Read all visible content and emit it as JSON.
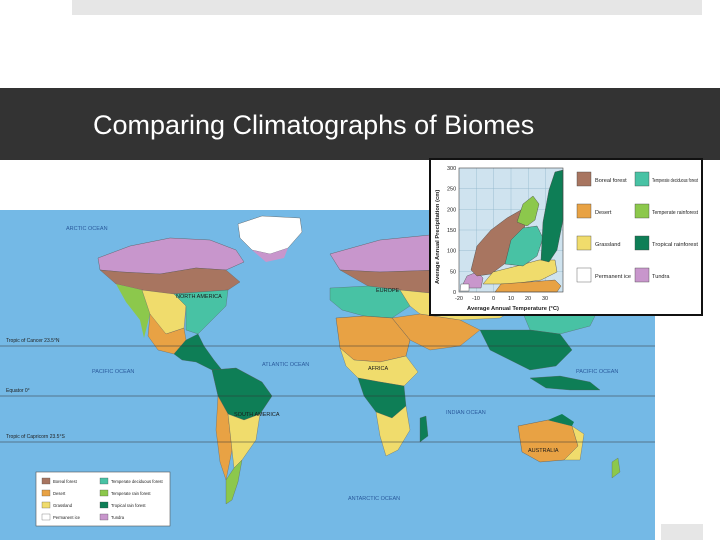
{
  "slide": {
    "title": "Comparing Climatographs of Biomes"
  },
  "colors": {
    "title_bar": "#333333",
    "ocean": "#74b9e6",
    "boreal_forest": "#a87560",
    "desert": "#e8a244",
    "grassland": "#f0dc6c",
    "permanent_ice": "#ffffff",
    "temperate_deciduous_forest": "#48c2a4",
    "temperate_rainforest": "#8cc84c",
    "tropical_rainforest": "#0e7e56",
    "tundra": "#c896cc"
  },
  "map": {
    "oceans": {
      "arctic": "ARCTIC OCEAN",
      "pacific_west": "PACIFIC OCEAN",
      "pacific_east": "PACIFIC OCEAN",
      "atlantic": "ATLANTIC OCEAN",
      "indian": "INDIAN OCEAN",
      "antarctic": "ANTARCTIC OCEAN"
    },
    "continents": {
      "north_america": "NORTH AMERICA",
      "south_america": "SOUTH AMERICA",
      "europe": "EUROPE",
      "africa": "AFRICA",
      "australia": "AUSTRALIA"
    },
    "lines": {
      "cancer": "Tropic of Cancer 23.5°N",
      "equator": "Equator 0°",
      "capricorn": "Tropic of Capricorn 23.5°S"
    },
    "legend": [
      {
        "label": "Boreal forest",
        "color_key": "boreal_forest"
      },
      {
        "label": "Temperate deciduous forest",
        "color_key": "temperate_deciduous_forest"
      },
      {
        "label": "Desert",
        "color_key": "desert"
      },
      {
        "label": "Temperate rain forest",
        "color_key": "temperate_rainforest"
      },
      {
        "label": "Grassland",
        "color_key": "grassland"
      },
      {
        "label": "Tropical rain forest",
        "color_key": "tropical_rainforest"
      },
      {
        "label": "Permanent ice",
        "color_key": "permanent_ice"
      },
      {
        "label": "Tundra",
        "color_key": "tundra"
      }
    ]
  },
  "climatograph": {
    "ylabel": "Average Annual Precipitation (cm)",
    "xlabel": "Average Annual Temperature (°C)",
    "y_ticks": [
      "300",
      "250",
      "200",
      "150",
      "100",
      "50",
      "0"
    ],
    "x_ticks": [
      "-20",
      "-10",
      "0",
      "10",
      "20",
      "30"
    ],
    "legend": [
      {
        "label": "Boreal forest",
        "color_key": "boreal_forest"
      },
      {
        "label": "Temperate deciduous forest",
        "color_key": "temperate_deciduous_forest"
      },
      {
        "label": "Desert",
        "color_key": "desert"
      },
      {
        "label": "Temperate rainforest",
        "color_key": "temperate_rainforest"
      },
      {
        "label": "Grassland",
        "color_key": "grassland"
      },
      {
        "label": "Tropical rainforest",
        "color_key": "tropical_rainforest"
      },
      {
        "label": "Permanent ice",
        "color_key": "permanent_ice"
      },
      {
        "label": "Tundra",
        "color_key": "tundra"
      }
    ]
  }
}
